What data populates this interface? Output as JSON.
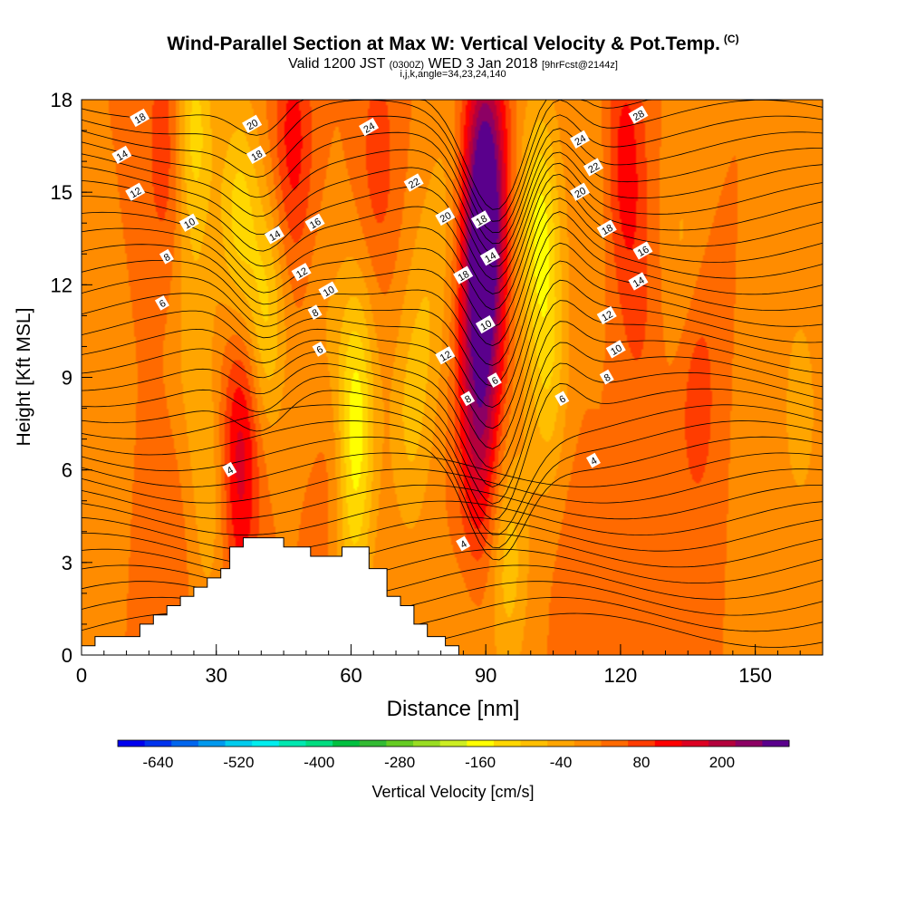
{
  "header": {
    "title": "Wind-Parallel Section at Max W: Vertical Velocity & Pot.Temp.",
    "title_mark": "(C)",
    "valid_prefix": "Valid 1200 JST",
    "valid_utc": "(0300Z)",
    "valid_date": "WED 3 Jan 2018",
    "forecast_tag": "[9hrFcst@2144z]",
    "indices": "i,j,k,angle=34,23,24,140"
  },
  "chart_data": {
    "type": "heatmap",
    "xlabel": "Distance [nm]",
    "ylabel": "Height [Kft MSL]",
    "xlim": [
      0,
      165
    ],
    "ylim": [
      0,
      18
    ],
    "xticks": [
      0,
      30,
      60,
      90,
      120,
      150
    ],
    "yticks": [
      0,
      3,
      6,
      9,
      12,
      15,
      18
    ],
    "grid": false,
    "colorbar": {
      "label": "Vertical Velocity [cm/s]",
      "tick_labels": [
        -640,
        -520,
        -400,
        -280,
        -160,
        -40,
        80,
        200
      ],
      "colors": [
        "#0000ee",
        "#0033ee",
        "#0066ee",
        "#0099ee",
        "#00ccee",
        "#00eeee",
        "#00e8b0",
        "#00dd80",
        "#00c040",
        "#33bb33",
        "#66cc22",
        "#99dd22",
        "#ccee22",
        "#ffff00",
        "#ffd700",
        "#ffbf00",
        "#ffa500",
        "#ff8c00",
        "#ff6a00",
        "#ff3c00",
        "#ff0000",
        "#dd0022",
        "#b4003c",
        "#8c0064",
        "#5a008c"
      ]
    },
    "background_w": 20,
    "w_features": [
      {
        "x": 4,
        "y": 7,
        "w": -30
      },
      {
        "x": 19,
        "y": 16.5,
        "w": 75
      },
      {
        "x": 19,
        "y": 3,
        "w": 40
      },
      {
        "x": 25,
        "y": 10,
        "w": -60
      },
      {
        "x": 25,
        "y": 17,
        "w": -140
      },
      {
        "x": 29,
        "y": 5,
        "w": -70
      },
      {
        "x": 35,
        "y": 14,
        "w": -140
      },
      {
        "x": 35,
        "y": 5.5,
        "w": 110
      },
      {
        "x": 36,
        "y": 9,
        "w": 70
      },
      {
        "x": 41,
        "y": 11,
        "w": -130
      },
      {
        "x": 47,
        "y": 16.5,
        "w": 100
      },
      {
        "x": 54,
        "y": 10,
        "w": -40
      },
      {
        "x": 57,
        "y": 6,
        "w": 70
      },
      {
        "x": 61,
        "y": 8.5,
        "w": -150
      },
      {
        "x": 60,
        "y": 4.5,
        "w": -120
      },
      {
        "x": 66,
        "y": 16,
        "w": 60
      },
      {
        "x": 73,
        "y": 7.5,
        "w": -80
      },
      {
        "x": 77,
        "y": 11,
        "w": -60
      },
      {
        "x": 81,
        "y": 15,
        "w": -40
      },
      {
        "x": 86,
        "y": 2,
        "w": -40
      },
      {
        "x": 88,
        "y": 5.5,
        "w": 95
      },
      {
        "x": 89,
        "y": 9,
        "w": 120
      },
      {
        "x": 89,
        "y": 12,
        "w": 170
      },
      {
        "x": 90,
        "y": 15.5,
        "w": 260
      },
      {
        "x": 95,
        "y": 3,
        "w": -100
      },
      {
        "x": 102,
        "y": 14,
        "w": -160
      },
      {
        "x": 104,
        "y": 9,
        "w": -100
      },
      {
        "x": 109,
        "y": 4,
        "w": 20
      },
      {
        "x": 114,
        "y": 15,
        "w": -40
      },
      {
        "x": 121,
        "y": 16,
        "w": 100
      },
      {
        "x": 124,
        "y": 11,
        "w": 40
      },
      {
        "x": 134,
        "y": 13,
        "w": -50
      },
      {
        "x": 137,
        "y": 8.5,
        "w": 70
      },
      {
        "x": 150,
        "y": 6,
        "w": -20
      },
      {
        "x": 160,
        "y": 8,
        "w": -60
      }
    ],
    "terrain": [
      [
        0,
        0.3
      ],
      [
        3,
        0.3
      ],
      [
        3,
        0.6
      ],
      [
        13,
        0.6
      ],
      [
        13,
        1.0
      ],
      [
        16,
        1.0
      ],
      [
        16,
        1.3
      ],
      [
        19,
        1.3
      ],
      [
        19,
        1.6
      ],
      [
        22,
        1.6
      ],
      [
        22,
        1.9
      ],
      [
        25,
        1.9
      ],
      [
        25,
        2.2
      ],
      [
        28,
        2.2
      ],
      [
        28,
        2.5
      ],
      [
        31,
        2.5
      ],
      [
        31,
        2.8
      ],
      [
        33,
        2.8
      ],
      [
        33,
        3.5
      ],
      [
        36,
        3.5
      ],
      [
        36,
        3.8
      ],
      [
        45,
        3.8
      ],
      [
        45,
        3.5
      ],
      [
        51,
        3.5
      ],
      [
        51,
        3.2
      ],
      [
        58,
        3.2
      ],
      [
        58,
        3.5
      ],
      [
        64,
        3.5
      ],
      [
        64,
        2.8
      ],
      [
        68,
        2.8
      ],
      [
        68,
        1.9
      ],
      [
        71,
        1.9
      ],
      [
        71,
        1.6
      ],
      [
        74,
        1.6
      ],
      [
        74,
        1.0
      ],
      [
        77,
        1.0
      ],
      [
        77,
        0.6
      ],
      [
        81,
        0.6
      ],
      [
        81,
        0.3
      ],
      [
        84,
        0.3
      ],
      [
        84,
        0
      ]
    ],
    "theta_labels": [
      {
        "x": 13,
        "y": 17.4,
        "text": "18"
      },
      {
        "x": 9,
        "y": 16.2,
        "text": "14"
      },
      {
        "x": 12,
        "y": 15.0,
        "text": "12"
      },
      {
        "x": 24,
        "y": 14.0,
        "text": "10"
      },
      {
        "x": 19,
        "y": 12.9,
        "text": "8"
      },
      {
        "x": 18,
        "y": 11.4,
        "text": "6"
      },
      {
        "x": 38,
        "y": 17.2,
        "text": "20"
      },
      {
        "x": 39,
        "y": 16.2,
        "text": "18"
      },
      {
        "x": 43,
        "y": 13.6,
        "text": "14"
      },
      {
        "x": 52,
        "y": 14.0,
        "text": "16"
      },
      {
        "x": 49,
        "y": 12.4,
        "text": "12"
      },
      {
        "x": 55,
        "y": 11.8,
        "text": "10"
      },
      {
        "x": 52,
        "y": 11.1,
        "text": "8"
      },
      {
        "x": 53,
        "y": 9.9,
        "text": "6"
      },
      {
        "x": 64,
        "y": 17.1,
        "text": "24"
      },
      {
        "x": 74,
        "y": 15.3,
        "text": "22"
      },
      {
        "x": 81,
        "y": 14.2,
        "text": "20"
      },
      {
        "x": 89,
        "y": 14.1,
        "text": "18"
      },
      {
        "x": 91,
        "y": 12.9,
        "text": "14"
      },
      {
        "x": 85,
        "y": 12.3,
        "text": "18"
      },
      {
        "x": 90,
        "y": 10.7,
        "text": "10"
      },
      {
        "x": 81,
        "y": 9.7,
        "text": "12"
      },
      {
        "x": 92,
        "y": 8.9,
        "text": "6"
      },
      {
        "x": 86,
        "y": 8.3,
        "text": "8"
      },
      {
        "x": 111,
        "y": 16.7,
        "text": "24"
      },
      {
        "x": 114,
        "y": 15.8,
        "text": "22"
      },
      {
        "x": 111,
        "y": 15.0,
        "text": "20"
      },
      {
        "x": 117,
        "y": 13.8,
        "text": "18"
      },
      {
        "x": 124,
        "y": 17.5,
        "text": "28"
      },
      {
        "x": 125,
        "y": 13.1,
        "text": "16"
      },
      {
        "x": 124,
        "y": 12.1,
        "text": "14"
      },
      {
        "x": 117,
        "y": 11.0,
        "text": "12"
      },
      {
        "x": 119,
        "y": 9.9,
        "text": "10"
      },
      {
        "x": 117,
        "y": 9.0,
        "text": "8"
      },
      {
        "x": 107,
        "y": 8.3,
        "text": "6"
      },
      {
        "x": 114,
        "y": 6.3,
        "text": "4"
      },
      {
        "x": 33,
        "y": 6.0,
        "text": "4"
      },
      {
        "x": 85,
        "y": 3.6,
        "text": "4"
      }
    ]
  }
}
